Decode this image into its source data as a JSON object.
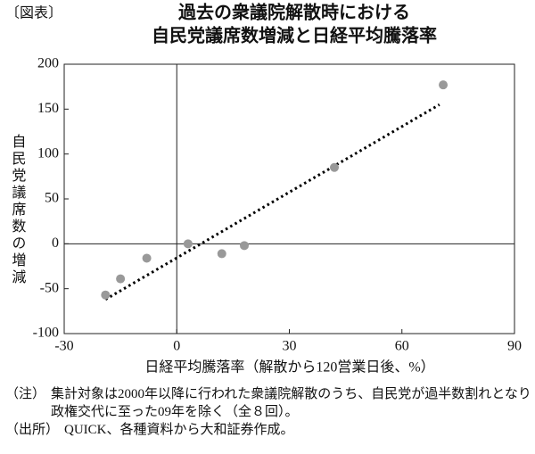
{
  "header": "〔図表〕",
  "chart_data": {
    "type": "scatter",
    "title": [
      "過去の衆議院解散時における",
      "自民党議席数増減と日経平均騰落率"
    ],
    "x_label": "日経平均騰落率（解散から120営業日後、%）",
    "y_label": "自民党議席数の増減",
    "x": [
      -19,
      -15,
      -8,
      3,
      12,
      18,
      42,
      71
    ],
    "values": [
      -57,
      -39,
      -16,
      0,
      -11,
      -2,
      85,
      177
    ],
    "color": "#999999",
    "trend": {
      "x": [
        -19,
        70
      ],
      "y": [
        -62,
        155
      ],
      "color": "#000000"
    },
    "xlim": [
      -30,
      90
    ],
    "xticks": [
      -30,
      0,
      30,
      60,
      90
    ],
    "ylim": [
      -100,
      200
    ],
    "yticks": [
      -100,
      -50,
      0,
      50,
      100,
      150,
      200
    ]
  },
  "notes": [
    {
      "label": "（注）",
      "text": "集計対象は2000年以降に行われた衆議院解散のうち、自民党が過半数割れとなり政権交代に至った09年を除く（全８回）。"
    },
    {
      "label": "（出所）",
      "text": "QUICK、各種資料から大和証券作成。"
    }
  ]
}
